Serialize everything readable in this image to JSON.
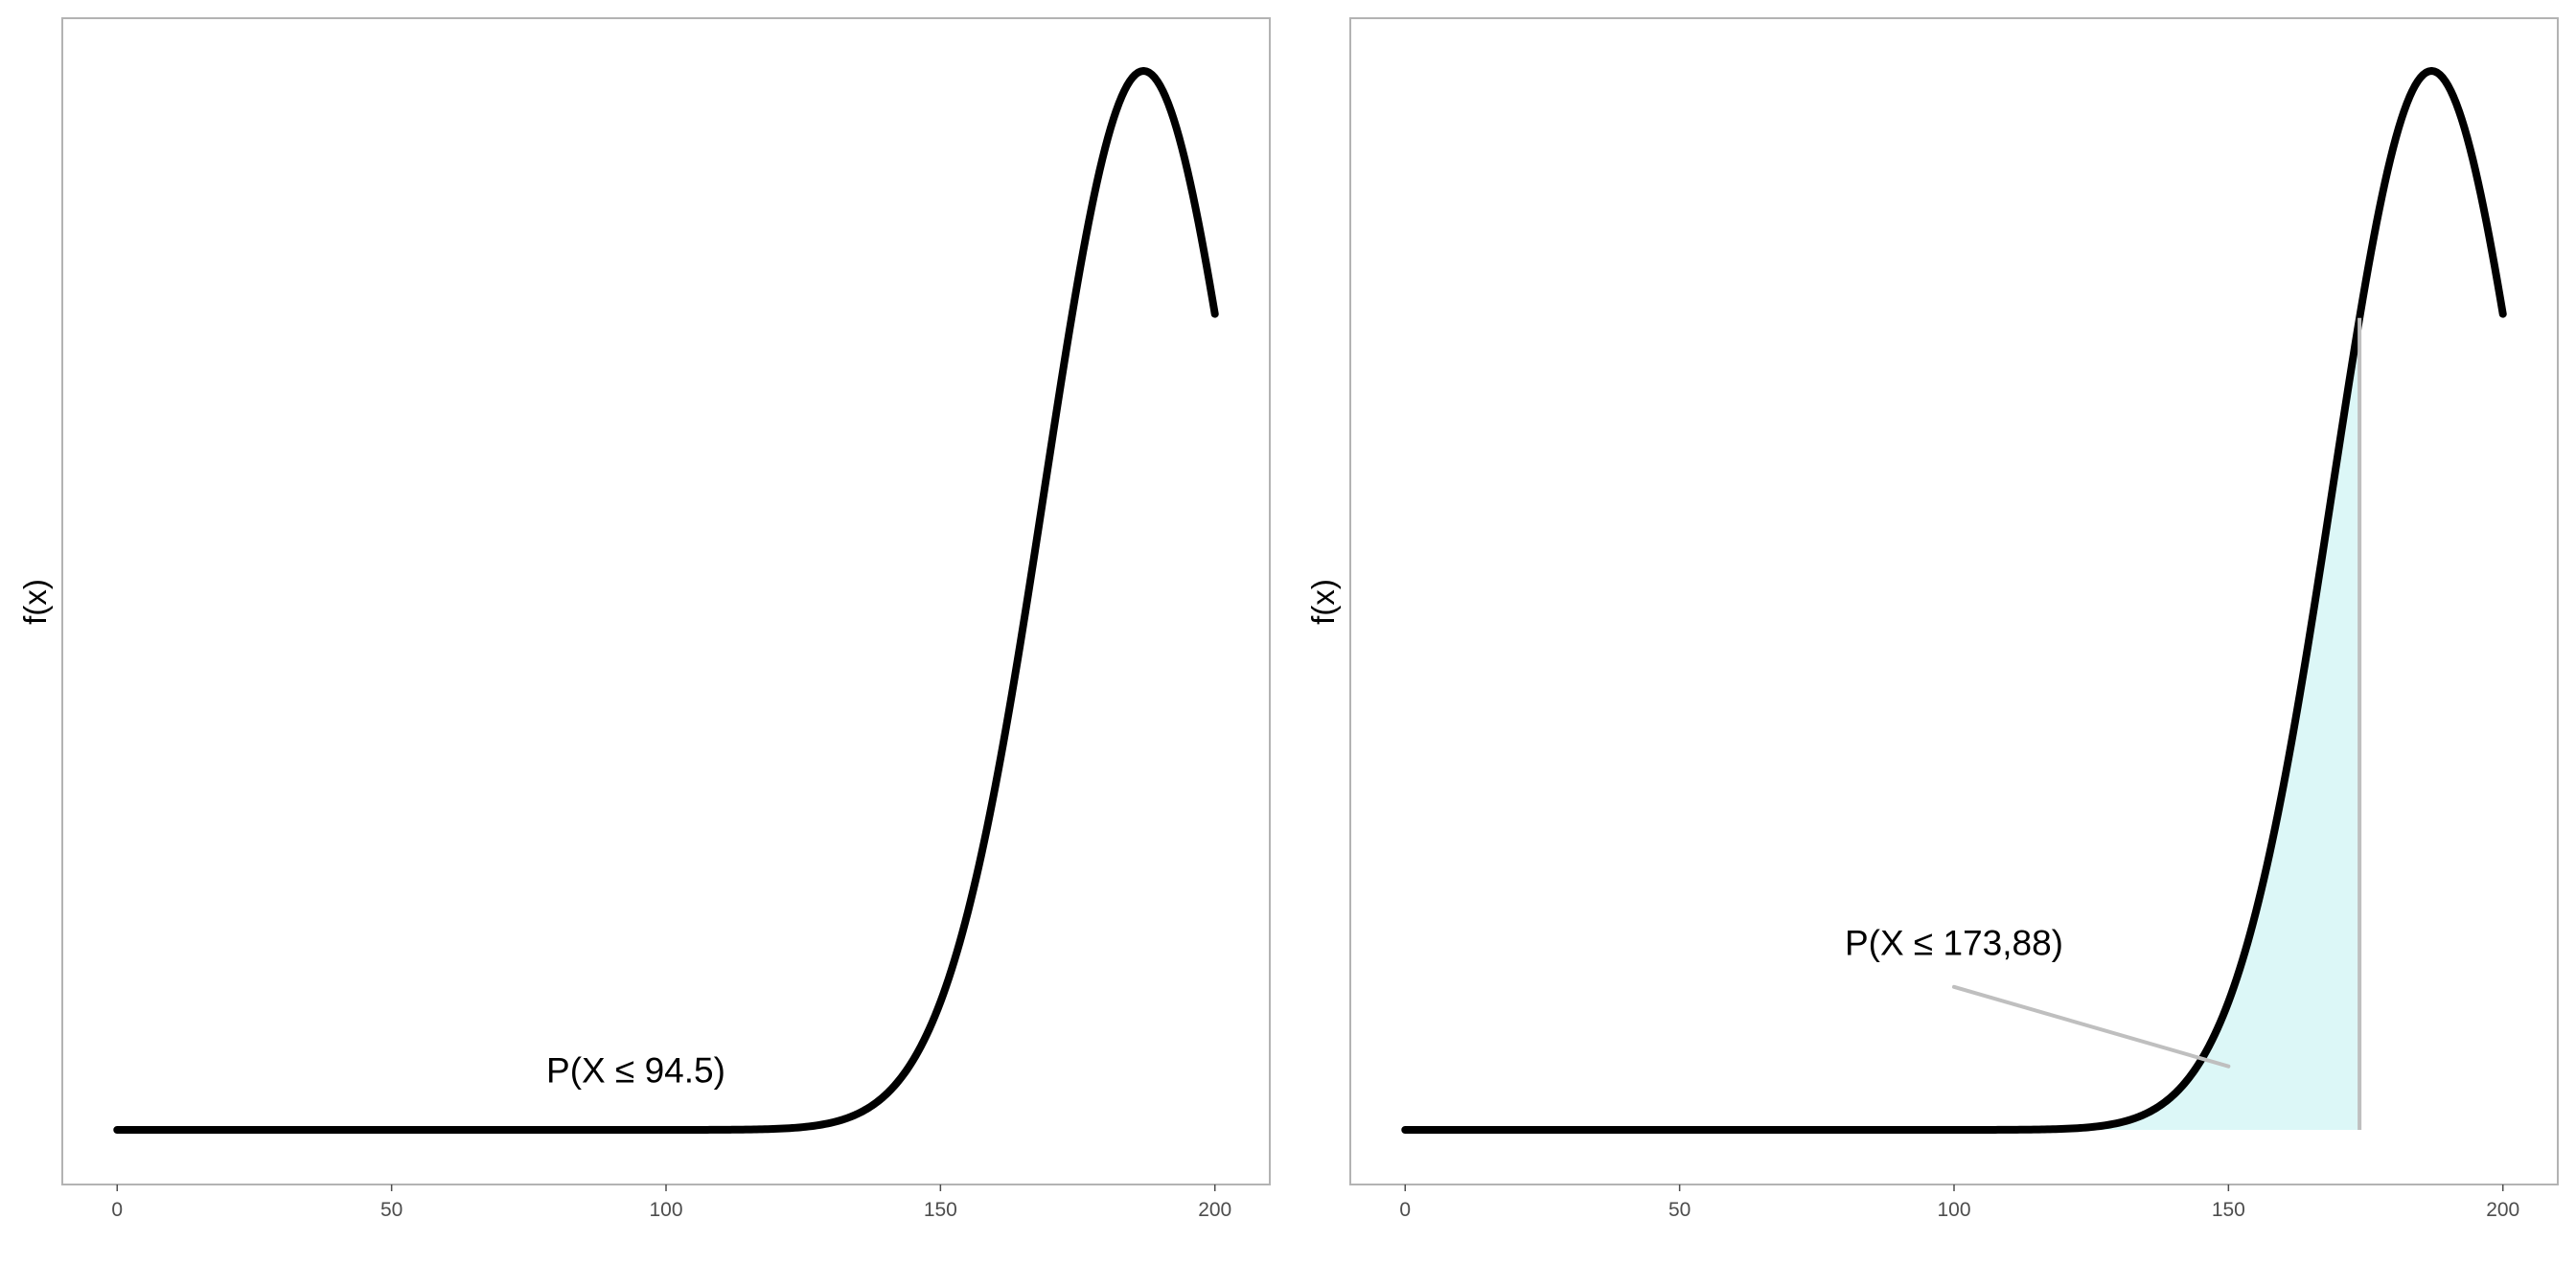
{
  "chart_data": [
    {
      "type": "line",
      "distribution": "normal",
      "mean": 187,
      "sd": 18,
      "x_range": [
        0,
        200
      ],
      "xlim": [
        -10,
        210
      ],
      "xticks": [
        0,
        50,
        100,
        150,
        200
      ],
      "xtick_labels": [
        "0",
        "50",
        "100",
        "150",
        "200"
      ],
      "ylabel": "f(x)",
      "shade_upper": null,
      "annotation": {
        "text": "P(X ≤ 94.5)",
        "x": 94.5,
        "y_frac": 0.045
      },
      "grid": false
    },
    {
      "type": "area",
      "distribution": "normal",
      "mean": 187,
      "sd": 18,
      "x_range": [
        0,
        200
      ],
      "xlim": [
        -10,
        210
      ],
      "xticks": [
        0,
        50,
        100,
        150,
        200
      ],
      "xtick_labels": [
        "0",
        "50",
        "100",
        "150",
        "200"
      ],
      "ylabel": "f(x)",
      "shade_upper": 173.88,
      "annotation": {
        "text": "P(X ≤ 173,88)",
        "x": 100,
        "y_frac": 0.165,
        "leader_from": [
          100,
          0.135
        ],
        "leader_to": [
          150,
          0.06
        ]
      },
      "grid": false
    }
  ],
  "colors": {
    "curve": "#000000",
    "shade": "#dcf7f7",
    "frame": "#b3b3b3",
    "leader": "#bfbfbf"
  }
}
